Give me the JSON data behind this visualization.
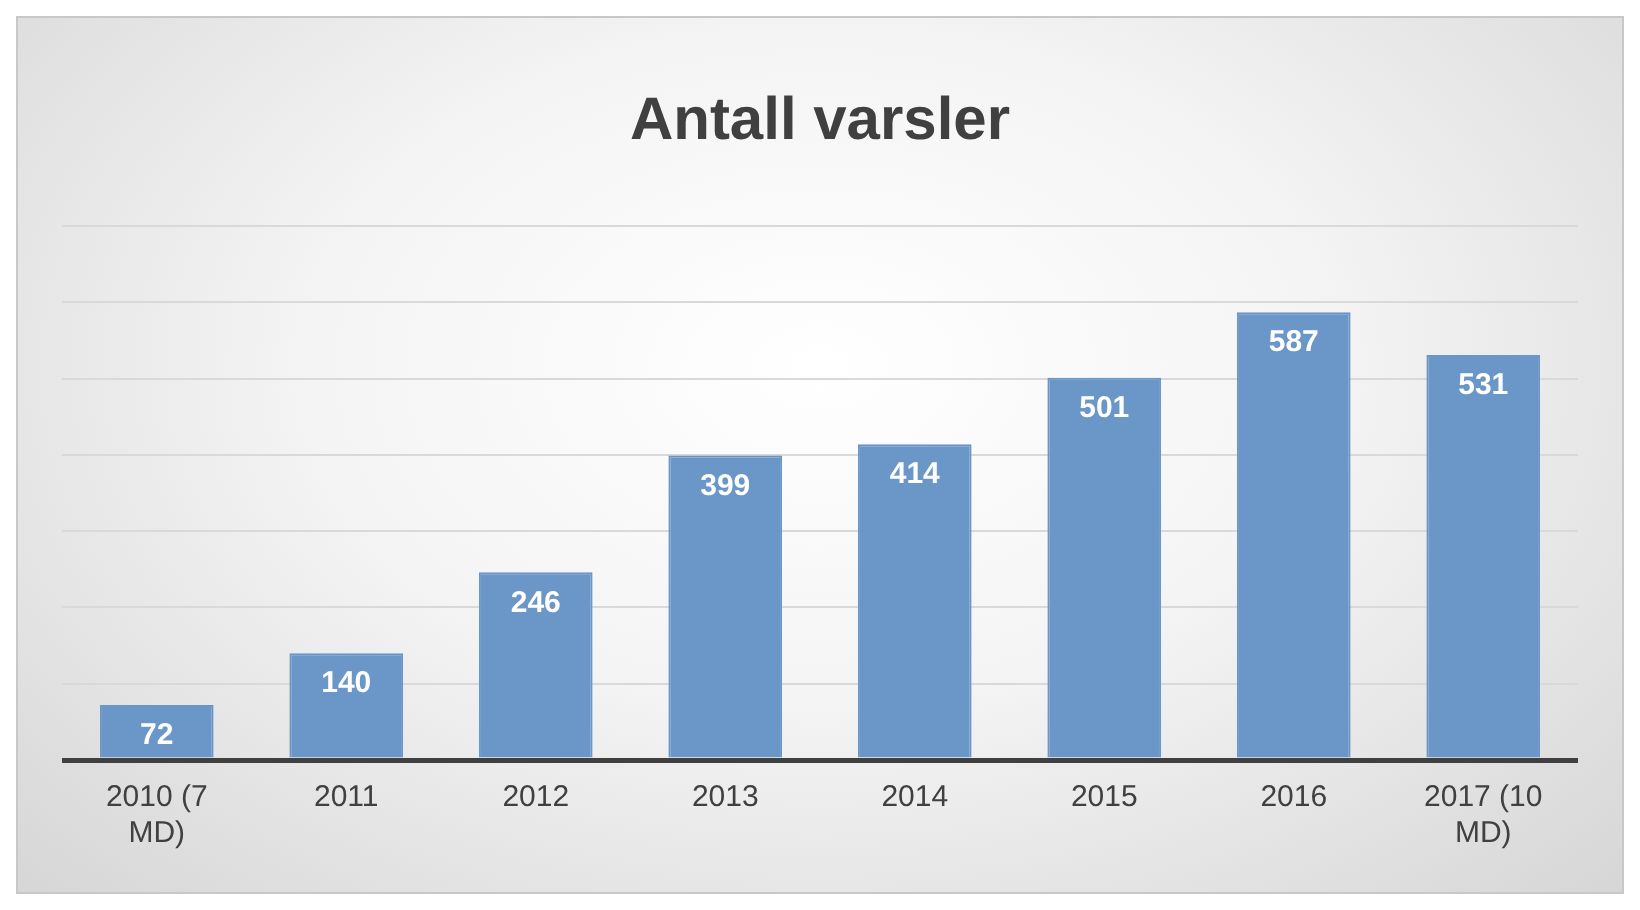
{
  "chart_data": {
    "type": "bar",
    "title": "Antall varsler",
    "categories": [
      "2010 (7 MD)",
      "2011",
      "2012",
      "2013",
      "2014",
      "2015",
      "2016",
      "2017 (10 MD)"
    ],
    "values": [
      72,
      140,
      246,
      399,
      414,
      501,
      587,
      531
    ],
    "color": "#6a96c8",
    "ylim": [
      0,
      700
    ],
    "tick_labels": "x",
    "grid": "y",
    "data_labels": true,
    "legend": false
  }
}
